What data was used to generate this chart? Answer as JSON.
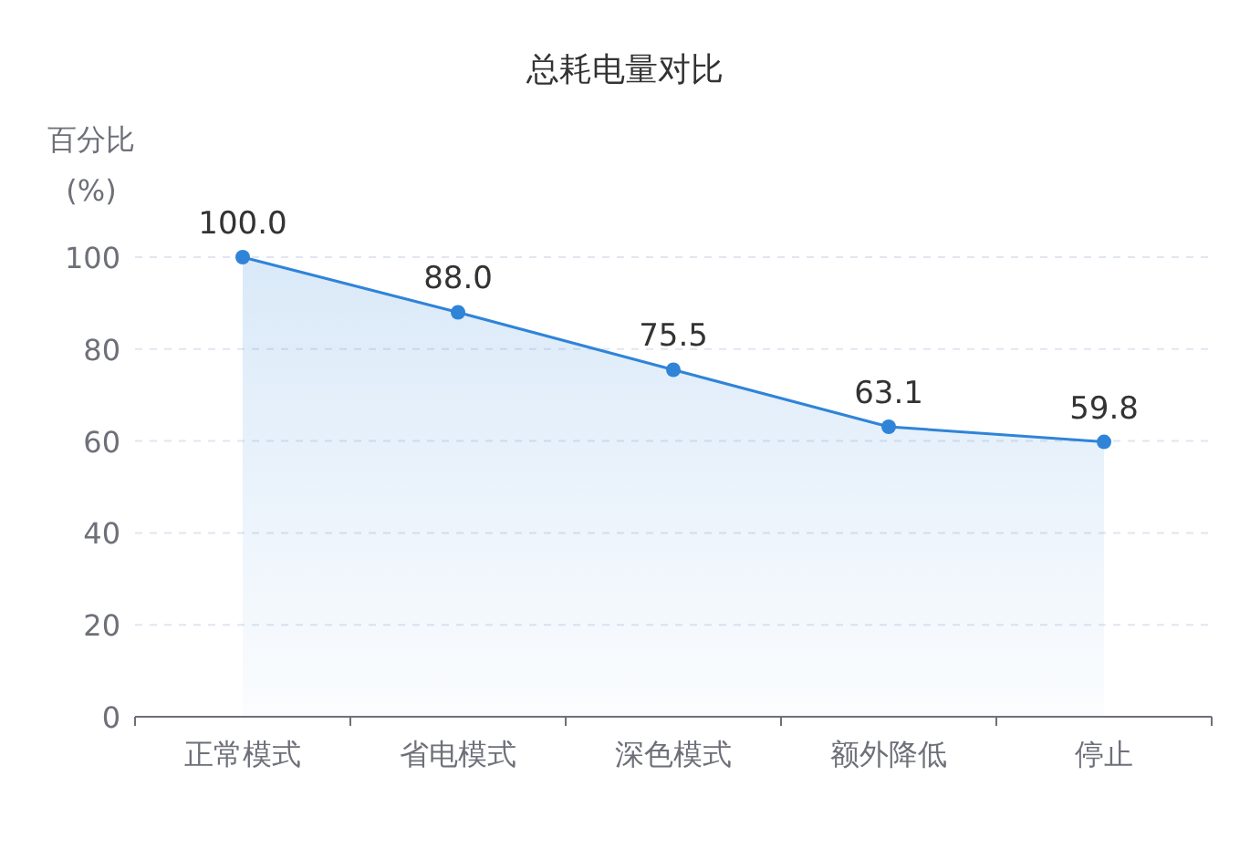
{
  "chart_data": {
    "type": "area",
    "title": "总耗电量对比",
    "ylabel": "百分比 (%)",
    "categories": [
      "正常模式",
      "省电模式",
      "深色模式",
      "额外降低",
      "停止"
    ],
    "series": [
      {
        "color": "#2f84d8",
        "values": [
          100.0,
          88.0,
          75.5,
          63.1,
          59.8
        ],
        "value_labels": [
          "100.0",
          "88.0",
          "75.5",
          "63.1",
          "59.8"
        ]
      }
    ],
    "ylim": [
      0,
      100
    ],
    "yticks": [
      0,
      20,
      40,
      60,
      80,
      100
    ],
    "grid": "y",
    "marker": "circle",
    "line_style": "solid"
  }
}
